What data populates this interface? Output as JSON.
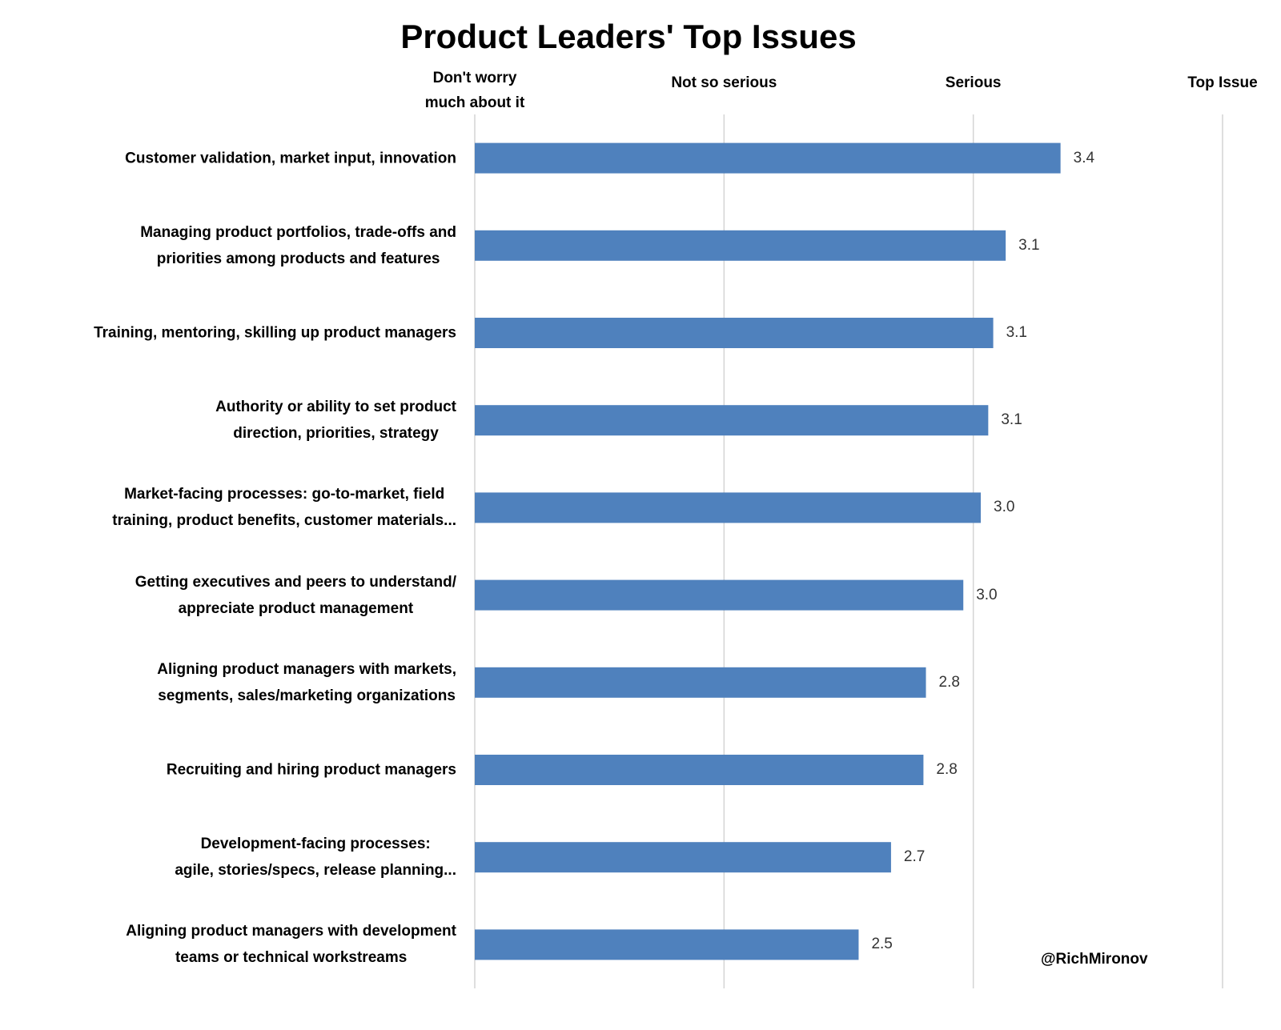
{
  "chart_data": {
    "type": "hbar",
    "title": "Product Leaders' Top Issues",
    "annotation": "@RichMironov",
    "categories": [
      "Customer validation, market input, innovation",
      "Managing product portfolios, trade-offs and\npriorities among products and features",
      "Training, mentoring, skilling up product managers",
      "Authority or ability to set product\ndirection, priorities, strategy",
      "Market-facing processes: go-to-market, field\ntraining, product benefits, customer materials...",
      "Getting executives and peers to understand/\nappreciate product management",
      "Aligning product managers with markets,\nsegments, sales/marketing organizations",
      "Recruiting and hiring product managers",
      "Development-facing processes:\nagile, stories/specs, release planning...",
      "Aligning product managers with development\nteams or technical workstreams"
    ],
    "values": [
      3.35,
      3.13,
      3.08,
      3.06,
      3.03,
      2.96,
      2.81,
      2.8,
      2.67,
      2.54
    ],
    "value_labels": [
      "3.4",
      "3.1",
      "3.1",
      "3.1",
      "3.0",
      "3.0",
      "2.8",
      "2.8",
      "2.7",
      "2.5"
    ],
    "color": "#4f81bd",
    "xlim": [
      1,
      4
    ],
    "xticks": [
      {
        "value": 1,
        "label": "Don't worry\nmuch about it"
      },
      {
        "value": 2,
        "label": "Not so serious"
      },
      {
        "value": 3,
        "label": "Serious"
      },
      {
        "value": 4,
        "label": "Top Issue"
      }
    ],
    "grid": true
  }
}
